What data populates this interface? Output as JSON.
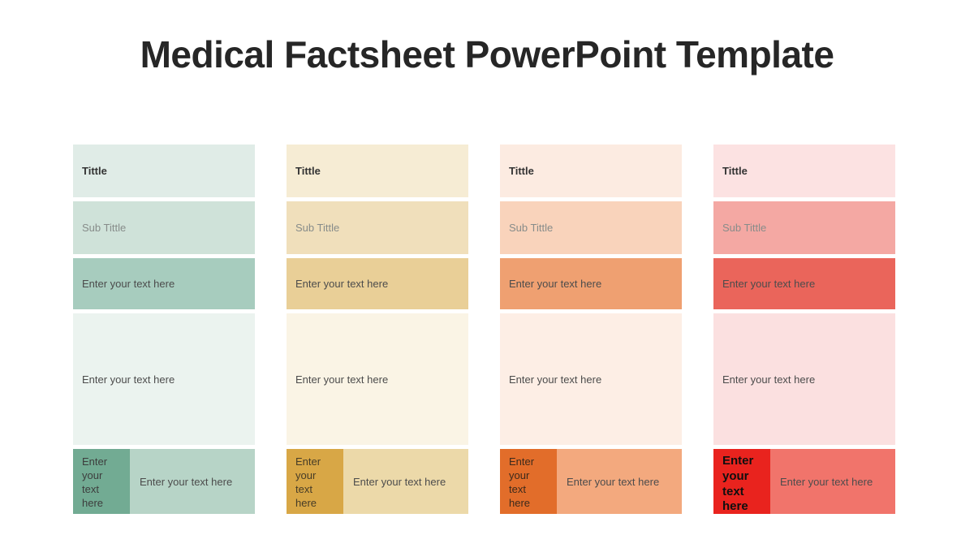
{
  "page": {
    "title": "Medical Factsheet PowerPoint Template",
    "background": "#ffffff",
    "title_color": "#262626"
  },
  "labels": {
    "title": "Tittle",
    "subtitle": "Sub Tittle",
    "placeholder": "Enter your text here"
  },
  "columns": [
    {
      "name": "teal",
      "title": "Tittle",
      "subtitle": "Sub Tittle",
      "text1": "Enter your text here",
      "body_text": "Enter your text here",
      "bottom_left": "Enter your text here",
      "bottom_right": "Enter your text here",
      "colors": {
        "title_bg": "#e0ece7",
        "subtitle_bg": "#cfe2d9",
        "text1_bg": "#a7ccbe",
        "body_bg": "#ebf3ef",
        "bottom_left_bg": "#72ab93",
        "bottom_left_fg": "#3d3d3d",
        "bottom_right_bg": "#b7d4c7"
      }
    },
    {
      "name": "gold",
      "title": "Tittle",
      "subtitle": "Sub Tittle",
      "text1": "Enter your text here",
      "body_text": "Enter your text here",
      "bottom_left": "Enter your text here",
      "bottom_right": "Enter your text here",
      "colors": {
        "title_bg": "#f6ecd4",
        "subtitle_bg": "#f0dfbb",
        "text1_bg": "#e9cf97",
        "body_bg": "#faf4e5",
        "bottom_left_bg": "#d8a746",
        "bottom_left_fg": "#463c27",
        "bottom_right_bg": "#ecd9a9"
      }
    },
    {
      "name": "orange",
      "title": "Tittle",
      "subtitle": "Sub Tittle",
      "text1": "Enter your text here",
      "body_text": "Enter your text here",
      "bottom_left": "Enter your text here",
      "bottom_right": "Enter your text here",
      "colors": {
        "title_bg": "#fcebe1",
        "subtitle_bg": "#f9d3bb",
        "text1_bg": "#efa071",
        "body_bg": "#fdeee5",
        "bottom_left_bg": "#e26d2a",
        "bottom_left_fg": "#3c2a1c",
        "bottom_right_bg": "#f3a97e"
      }
    },
    {
      "name": "red",
      "title": "Tittle",
      "subtitle": "Sub Tittle",
      "text1": "Enter your text here",
      "body_text": "Enter your text here",
      "bottom_left": "Enter your text here",
      "bottom_right": "Enter your text here",
      "colors": {
        "title_bg": "#fce2e2",
        "subtitle_bg": "#f4a8a3",
        "text1_bg": "#ea655b",
        "body_bg": "#fbe0e0",
        "bottom_left_bg": "#e9231e",
        "bottom_left_fg": "#0f0f0f",
        "bottom_right_bg": "#f1746b"
      }
    }
  ]
}
